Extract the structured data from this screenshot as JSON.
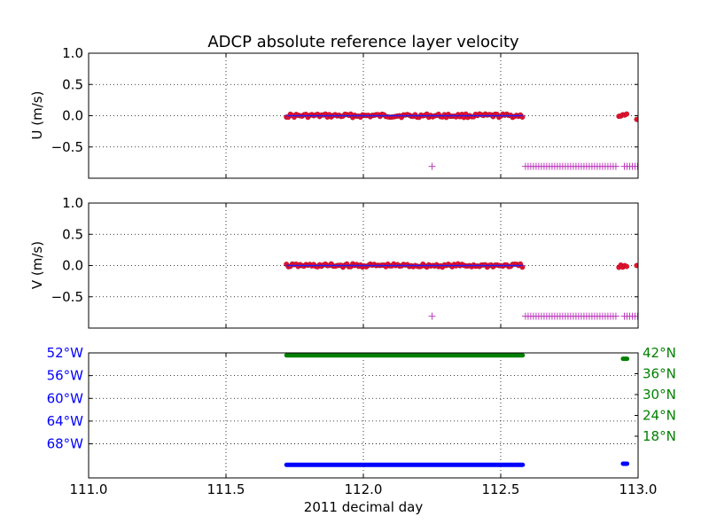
{
  "chart_data": {
    "title": "ADCP absolute reference layer velocity",
    "xlabel": "2011 decimal day",
    "x_range": [
      111.0,
      113.0
    ],
    "x_ticks": [
      "111.0",
      "111.5",
      "112.0",
      "112.5",
      "113.0"
    ],
    "x_tick_values": [
      111.0,
      111.5,
      112.0,
      112.5,
      113.0
    ],
    "grid": true,
    "panels": [
      {
        "type": "scatter",
        "ylabel": "U (m/s)",
        "ylim": [
          -1.0,
          1.0
        ],
        "y_ticks": [
          "1.0",
          "0.5",
          "0.0",
          "−0.5"
        ],
        "y_tick_values": [
          1.0,
          0.5,
          0.0,
          -0.5
        ],
        "series": [
          {
            "kind": "dots",
            "color": "#e8112d",
            "segments": [
              {
                "x_start": 111.72,
                "x_end": 112.58,
                "value": 0.0
              },
              {
                "x_start": 112.93,
                "x_end": 112.96,
                "value": 0.0
              },
              {
                "x_start": 112.995,
                "x_end": 113.0,
                "value": -0.04
              }
            ]
          },
          {
            "kind": "line",
            "color": "#1f1fff",
            "segments": [
              {
                "x_start": 111.72,
                "x_end": 112.58,
                "value": 0.0
              }
            ]
          },
          {
            "kind": "plus",
            "color": "#bf3fbf",
            "points": [
              {
                "x": 112.25,
                "y": -0.81
              }
            ],
            "segments": [
              {
                "x_start": 112.59,
                "x_end": 112.92,
                "value": -0.81
              },
              {
                "x_start": 112.95,
                "x_end": 113.0,
                "value": -0.81
              }
            ]
          }
        ]
      },
      {
        "type": "scatter",
        "ylabel": "V (m/s)",
        "ylim": [
          -1.0,
          1.0
        ],
        "y_ticks": [
          "1.0",
          "0.5",
          "0.0",
          "−0.5"
        ],
        "y_tick_values": [
          1.0,
          0.5,
          0.0,
          -0.5
        ],
        "series": [
          {
            "kind": "dots",
            "color": "#e8112d",
            "segments": [
              {
                "x_start": 111.72,
                "x_end": 112.58,
                "value": 0.0
              },
              {
                "x_start": 112.93,
                "x_end": 112.96,
                "value": -0.02
              },
              {
                "x_start": 112.995,
                "x_end": 113.0,
                "value": 0.0
              }
            ]
          },
          {
            "kind": "line",
            "color": "#1f1fff",
            "segments": [
              {
                "x_start": 111.72,
                "x_end": 112.58,
                "value": 0.0
              }
            ]
          },
          {
            "kind": "plus",
            "color": "#bf3fbf",
            "points": [
              {
                "x": 112.25,
                "y": -0.81
              }
            ],
            "segments": [
              {
                "x_start": 112.59,
                "x_end": 112.92,
                "value": -0.81
              },
              {
                "x_start": 112.95,
                "x_end": 113.0,
                "value": -0.81
              }
            ]
          }
        ]
      },
      {
        "type": "scatter",
        "ylim_left": [
          -74,
          -52
        ],
        "y_ticks_left": [
          "52°W",
          "56°W",
          "60°W",
          "64°W",
          "68°W"
        ],
        "y_tick_values_left": [
          -52,
          -56,
          -60,
          -64,
          -68
        ],
        "left_tick_color": "#0000ff",
        "ylim_right": [
          6,
          42
        ],
        "y_ticks_right": [
          "42°N",
          "36°N",
          "30°N",
          "24°N",
          "18°N"
        ],
        "y_tick_values_right": [
          42,
          36,
          30,
          24,
          18
        ],
        "right_tick_color": "#008000",
        "series": [
          {
            "name_axis": "left",
            "kind": "thick",
            "color": "#0000ff",
            "segments": [
              {
                "x_start": 111.72,
                "x_end": 112.58,
                "value": -71.7
              },
              {
                "x_start": 112.945,
                "x_end": 112.96,
                "value": -71.5
              }
            ]
          },
          {
            "name_axis": "right",
            "kind": "thick",
            "color": "#008000",
            "segments": [
              {
                "x_start": 111.72,
                "x_end": 112.58,
                "value": 41.3
              },
              {
                "x_start": 112.945,
                "x_end": 112.96,
                "value": 40.3
              }
            ]
          }
        ]
      }
    ]
  }
}
